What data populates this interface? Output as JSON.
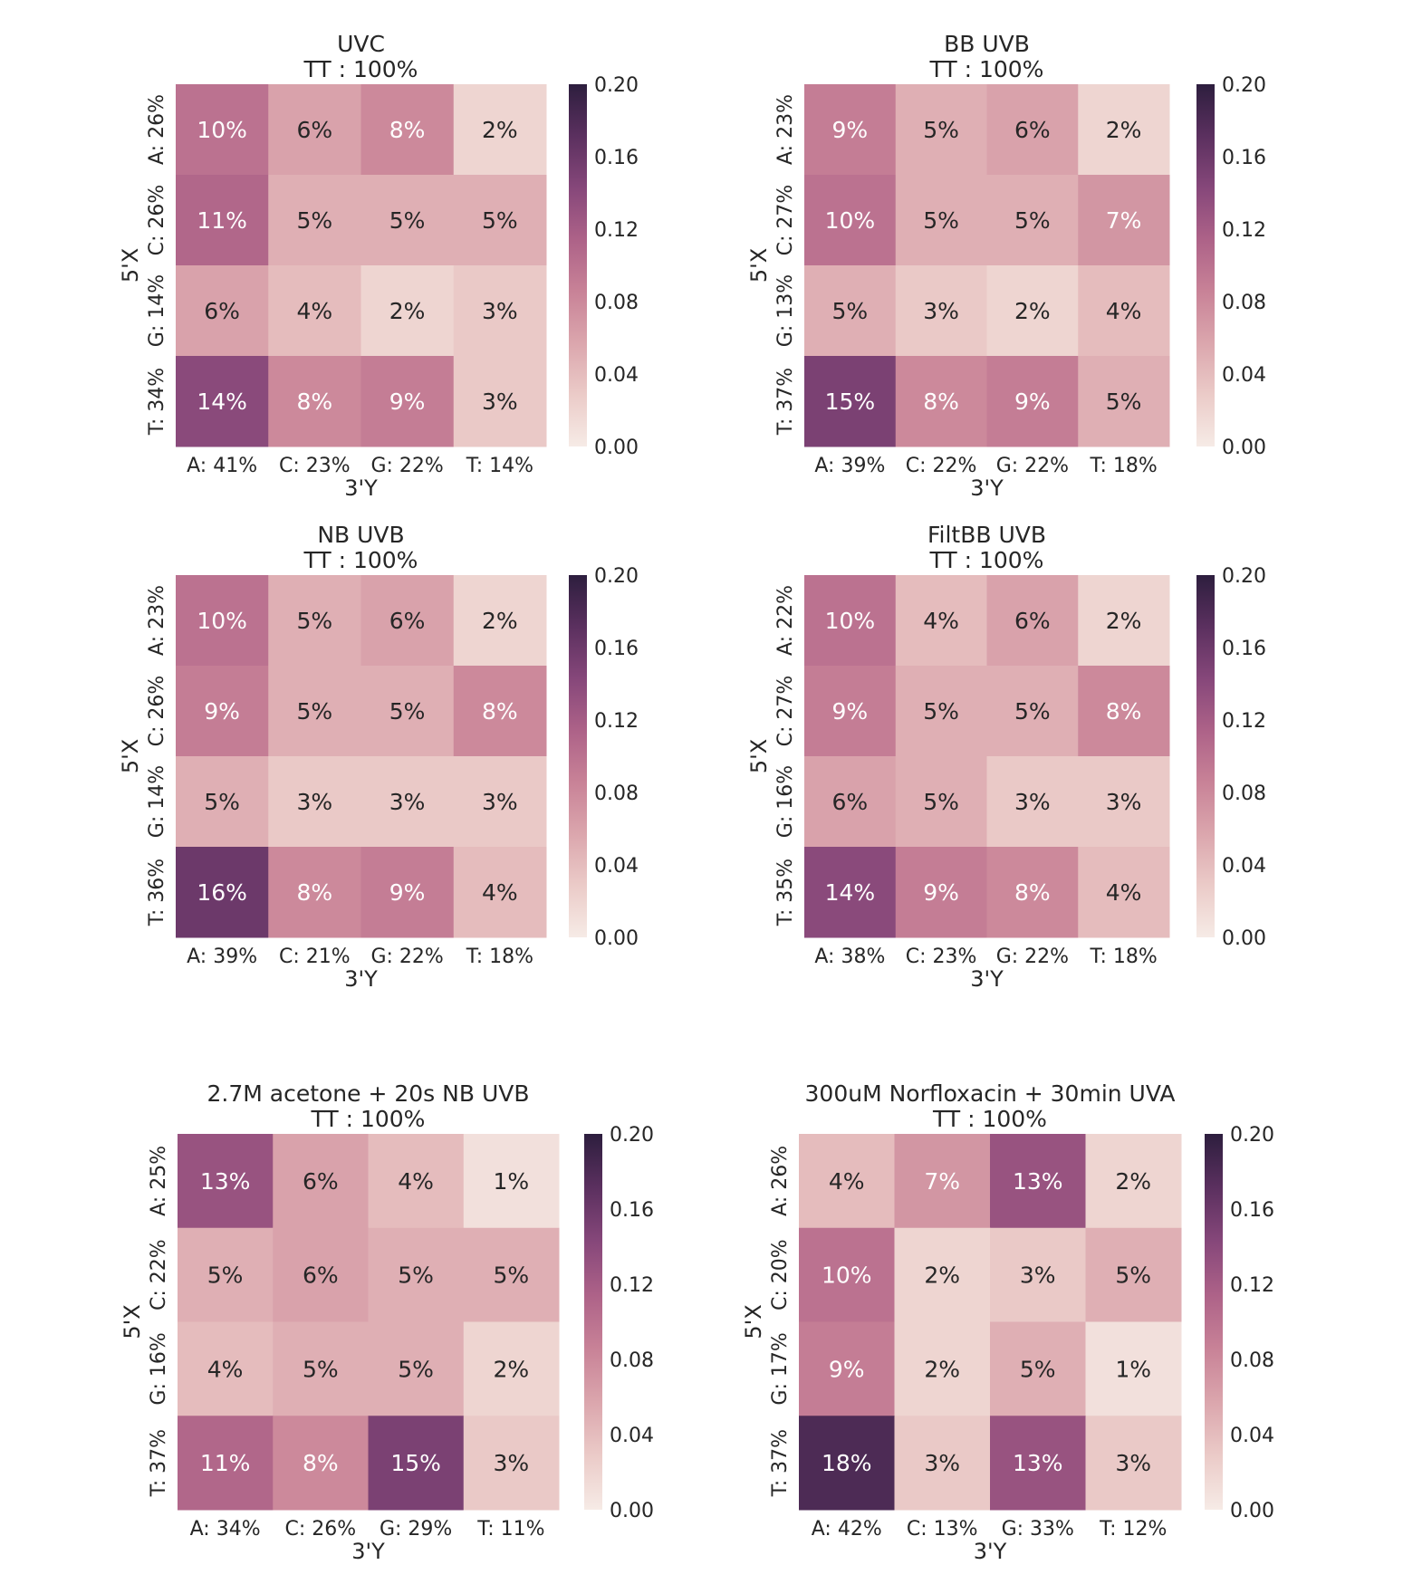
{
  "chart_data": [
    {
      "type": "heatmap",
      "title": "UVC",
      "subtitle": "TT : 100%",
      "xlabel": "3'Y",
      "ylabel": "5'X",
      "x_ticks": [
        "A: 41%",
        "C: 23%",
        "G: 22%",
        "T: 14%"
      ],
      "y_ticks": [
        "A: 26%",
        "C: 26%",
        "G: 14%",
        "T: 34%"
      ],
      "values": [
        [
          0.1,
          0.06,
          0.08,
          0.02
        ],
        [
          0.11,
          0.05,
          0.05,
          0.05
        ],
        [
          0.06,
          0.04,
          0.02,
          0.03
        ],
        [
          0.14,
          0.08,
          0.09,
          0.03
        ]
      ],
      "cell_labels": [
        [
          "10%",
          "6%",
          "8%",
          "2%"
        ],
        [
          "11%",
          "5%",
          "5%",
          "5%"
        ],
        [
          "6%",
          "4%",
          "2%",
          "3%"
        ],
        [
          "14%",
          "8%",
          "9%",
          "3%"
        ]
      ],
      "colorbar": {
        "vmin": 0.0,
        "vmax": 0.2,
        "ticks": [
          "0.00",
          "0.04",
          "0.08",
          "0.12",
          "0.16",
          "0.20"
        ]
      }
    },
    {
      "type": "heatmap",
      "title": "BB UVB",
      "subtitle": "TT : 100%",
      "xlabel": "3'Y",
      "ylabel": "5'X",
      "x_ticks": [
        "A: 39%",
        "C: 22%",
        "G: 22%",
        "T: 18%"
      ],
      "y_ticks": [
        "A: 23%",
        "C: 27%",
        "G: 13%",
        "T: 37%"
      ],
      "values": [
        [
          0.09,
          0.05,
          0.06,
          0.02
        ],
        [
          0.1,
          0.05,
          0.05,
          0.07
        ],
        [
          0.05,
          0.03,
          0.02,
          0.04
        ],
        [
          0.15,
          0.08,
          0.09,
          0.05
        ]
      ],
      "cell_labels": [
        [
          "9%",
          "5%",
          "6%",
          "2%"
        ],
        [
          "10%",
          "5%",
          "5%",
          "7%"
        ],
        [
          "5%",
          "3%",
          "2%",
          "4%"
        ],
        [
          "15%",
          "8%",
          "9%",
          "5%"
        ]
      ],
      "colorbar": {
        "vmin": 0.0,
        "vmax": 0.2,
        "ticks": [
          "0.00",
          "0.04",
          "0.08",
          "0.12",
          "0.16",
          "0.20"
        ]
      }
    },
    {
      "type": "heatmap",
      "title": "NB UVB",
      "subtitle": "TT : 100%",
      "xlabel": "3'Y",
      "ylabel": "5'X",
      "x_ticks": [
        "A: 39%",
        "C: 21%",
        "G: 22%",
        "T: 18%"
      ],
      "y_ticks": [
        "A: 23%",
        "C: 26%",
        "G: 14%",
        "T: 36%"
      ],
      "values": [
        [
          0.1,
          0.05,
          0.06,
          0.02
        ],
        [
          0.09,
          0.05,
          0.05,
          0.08
        ],
        [
          0.05,
          0.03,
          0.03,
          0.03
        ],
        [
          0.16,
          0.08,
          0.09,
          0.04
        ]
      ],
      "cell_labels": [
        [
          "10%",
          "5%",
          "6%",
          "2%"
        ],
        [
          "9%",
          "5%",
          "5%",
          "8%"
        ],
        [
          "5%",
          "3%",
          "3%",
          "3%"
        ],
        [
          "16%",
          "8%",
          "9%",
          "4%"
        ]
      ],
      "colorbar": {
        "vmin": 0.0,
        "vmax": 0.2,
        "ticks": [
          "0.00",
          "0.04",
          "0.08",
          "0.12",
          "0.16",
          "0.20"
        ]
      }
    },
    {
      "type": "heatmap",
      "title": "FiltBB UVB",
      "subtitle": "TT : 100%",
      "xlabel": "3'Y",
      "ylabel": "5'X",
      "x_ticks": [
        "A: 38%",
        "C: 23%",
        "G: 22%",
        "T: 18%"
      ],
      "y_ticks": [
        "A: 22%",
        "C: 27%",
        "G: 16%",
        "T: 35%"
      ],
      "values": [
        [
          0.1,
          0.04,
          0.06,
          0.02
        ],
        [
          0.09,
          0.05,
          0.05,
          0.08
        ],
        [
          0.06,
          0.05,
          0.03,
          0.03
        ],
        [
          0.14,
          0.09,
          0.08,
          0.04
        ]
      ],
      "cell_labels": [
        [
          "10%",
          "4%",
          "6%",
          "2%"
        ],
        [
          "9%",
          "5%",
          "5%",
          "8%"
        ],
        [
          "6%",
          "5%",
          "3%",
          "3%"
        ],
        [
          "14%",
          "9%",
          "8%",
          "4%"
        ]
      ],
      "colorbar": {
        "vmin": 0.0,
        "vmax": 0.2,
        "ticks": [
          "0.00",
          "0.04",
          "0.08",
          "0.12",
          "0.16",
          "0.20"
        ]
      }
    },
    {
      "type": "heatmap",
      "title": "2.7M acetone + 20s NB UVB",
      "subtitle": "TT : 100%",
      "xlabel": "3'Y",
      "ylabel": "5'X",
      "x_ticks": [
        "A: 34%",
        "C: 26%",
        "G: 29%",
        "T: 11%"
      ],
      "y_ticks": [
        "A: 25%",
        "C: 22%",
        "G: 16%",
        "T: 37%"
      ],
      "values": [
        [
          0.13,
          0.06,
          0.04,
          0.01
        ],
        [
          0.05,
          0.06,
          0.05,
          0.05
        ],
        [
          0.04,
          0.05,
          0.05,
          0.02
        ],
        [
          0.11,
          0.08,
          0.15,
          0.03
        ]
      ],
      "cell_labels": [
        [
          "13%",
          "6%",
          "4%",
          "1%"
        ],
        [
          "5%",
          "6%",
          "5%",
          "5%"
        ],
        [
          "4%",
          "5%",
          "5%",
          "2%"
        ],
        [
          "11%",
          "8%",
          "15%",
          "3%"
        ]
      ],
      "colorbar": {
        "vmin": 0.0,
        "vmax": 0.2,
        "ticks": [
          "0.00",
          "0.04",
          "0.08",
          "0.12",
          "0.16",
          "0.20"
        ]
      }
    },
    {
      "type": "heatmap",
      "title": "300uM Norfloxacin + 30min UVA",
      "subtitle": "TT : 100%",
      "xlabel": "3'Y",
      "ylabel": "5'X",
      "x_ticks": [
        "A: 42%",
        "C: 13%",
        "G: 33%",
        "T: 12%"
      ],
      "y_ticks": [
        "A: 26%",
        "C: 20%",
        "G: 17%",
        "T: 37%"
      ],
      "values": [
        [
          0.04,
          0.07,
          0.13,
          0.02
        ],
        [
          0.1,
          0.02,
          0.03,
          0.05
        ],
        [
          0.09,
          0.02,
          0.05,
          0.01
        ],
        [
          0.18,
          0.03,
          0.13,
          0.03
        ]
      ],
      "cell_labels": [
        [
          "4%",
          "7%",
          "13%",
          "2%"
        ],
        [
          "10%",
          "2%",
          "3%",
          "5%"
        ],
        [
          "9%",
          "2%",
          "5%",
          "1%"
        ],
        [
          "18%",
          "3%",
          "13%",
          "3%"
        ]
      ],
      "colorbar": {
        "vmin": 0.0,
        "vmax": 0.2,
        "ticks": [
          "0.00",
          "0.04",
          "0.08",
          "0.12",
          "0.16",
          "0.20"
        ]
      }
    }
  ],
  "colors": {
    "colormap": [
      "#f6ebe6",
      "#ebcbc8",
      "#dba6ad",
      "#c88297",
      "#ad6288",
      "#86477a",
      "#5b305f",
      "#2d1e3e"
    ],
    "text_dark": "#262626",
    "text_light": "#ffffff"
  }
}
